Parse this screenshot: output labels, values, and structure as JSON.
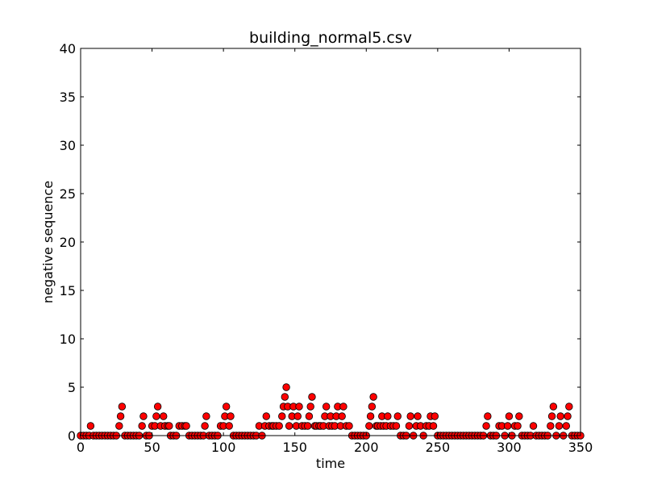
{
  "chart_data": {
    "type": "scatter",
    "title": "building_normal5.csv",
    "xlabel": "time",
    "ylabel": "negative sequence",
    "xlim": [
      0,
      350
    ],
    "ylim": [
      0,
      40
    ],
    "xticks": [
      "0",
      "50",
      "100",
      "150",
      "200",
      "250",
      "300",
      "350"
    ],
    "yticks": [
      "0",
      "5",
      "10",
      "15",
      "20",
      "25",
      "30",
      "35",
      "40"
    ],
    "marker_color": "#ff0000",
    "marker_edge": "#000000",
    "grid": false,
    "legend": "none",
    "points": [
      [
        0,
        0
      ],
      [
        2,
        0
      ],
      [
        4,
        0
      ],
      [
        6,
        0
      ],
      [
        7,
        1
      ],
      [
        9,
        0
      ],
      [
        11,
        0
      ],
      [
        13,
        0
      ],
      [
        15,
        0
      ],
      [
        17,
        0
      ],
      [
        19,
        0
      ],
      [
        21,
        0
      ],
      [
        23,
        0
      ],
      [
        25,
        0
      ],
      [
        27,
        1
      ],
      [
        28,
        2
      ],
      [
        29,
        3
      ],
      [
        31,
        0
      ],
      [
        33,
        0
      ],
      [
        35,
        0
      ],
      [
        37,
        0
      ],
      [
        39,
        0
      ],
      [
        41,
        0
      ],
      [
        43,
        1
      ],
      [
        44,
        2
      ],
      [
        46,
        0
      ],
      [
        48,
        0
      ],
      [
        50,
        1
      ],
      [
        52,
        1
      ],
      [
        53,
        2
      ],
      [
        54,
        3
      ],
      [
        56,
        1
      ],
      [
        58,
        2
      ],
      [
        59,
        1
      ],
      [
        61,
        1
      ],
      [
        62,
        1
      ],
      [
        63,
        0
      ],
      [
        65,
        0
      ],
      [
        67,
        0
      ],
      [
        69,
        1
      ],
      [
        71,
        1
      ],
      [
        73,
        1
      ],
      [
        74,
        1
      ],
      [
        76,
        0
      ],
      [
        78,
        0
      ],
      [
        80,
        0
      ],
      [
        82,
        0
      ],
      [
        84,
        0
      ],
      [
        86,
        0
      ],
      [
        87,
        1
      ],
      [
        88,
        2
      ],
      [
        90,
        0
      ],
      [
        92,
        0
      ],
      [
        94,
        0
      ],
      [
        96,
        0
      ],
      [
        98,
        1
      ],
      [
        100,
        1
      ],
      [
        101,
        2
      ],
      [
        102,
        3
      ],
      [
        104,
        1
      ],
      [
        105,
        2
      ],
      [
        107,
        0
      ],
      [
        109,
        0
      ],
      [
        111,
        0
      ],
      [
        113,
        0
      ],
      [
        115,
        0
      ],
      [
        117,
        0
      ],
      [
        119,
        0
      ],
      [
        121,
        0
      ],
      [
        123,
        0
      ],
      [
        125,
        1
      ],
      [
        127,
        0
      ],
      [
        129,
        1
      ],
      [
        130,
        2
      ],
      [
        132,
        1
      ],
      [
        134,
        1
      ],
      [
        135,
        1
      ],
      [
        137,
        1
      ],
      [
        139,
        1
      ],
      [
        141,
        2
      ],
      [
        142,
        3
      ],
      [
        143,
        4
      ],
      [
        144,
        5
      ],
      [
        145,
        3
      ],
      [
        146,
        1
      ],
      [
        148,
        2
      ],
      [
        149,
        3
      ],
      [
        151,
        1
      ],
      [
        152,
        2
      ],
      [
        153,
        3
      ],
      [
        155,
        1
      ],
      [
        157,
        1
      ],
      [
        159,
        1
      ],
      [
        160,
        2
      ],
      [
        161,
        3
      ],
      [
        162,
        4
      ],
      [
        164,
        1
      ],
      [
        165,
        1
      ],
      [
        167,
        1
      ],
      [
        168,
        1
      ],
      [
        170,
        1
      ],
      [
        171,
        2
      ],
      [
        172,
        3
      ],
      [
        174,
        1
      ],
      [
        175,
        2
      ],
      [
        176,
        1
      ],
      [
        178,
        1
      ],
      [
        179,
        2
      ],
      [
        180,
        3
      ],
      [
        182,
        1
      ],
      [
        183,
        2
      ],
      [
        184,
        3
      ],
      [
        186,
        1
      ],
      [
        188,
        1
      ],
      [
        190,
        0
      ],
      [
        192,
        0
      ],
      [
        194,
        0
      ],
      [
        196,
        0
      ],
      [
        198,
        0
      ],
      [
        200,
        0
      ],
      [
        202,
        1
      ],
      [
        203,
        2
      ],
      [
        204,
        3
      ],
      [
        205,
        4
      ],
      [
        207,
        1
      ],
      [
        208,
        1
      ],
      [
        210,
        1
      ],
      [
        211,
        2
      ],
      [
        212,
        1
      ],
      [
        214,
        1
      ],
      [
        215,
        2
      ],
      [
        217,
        1
      ],
      [
        219,
        1
      ],
      [
        221,
        1
      ],
      [
        222,
        2
      ],
      [
        224,
        0
      ],
      [
        226,
        0
      ],
      [
        228,
        0
      ],
      [
        230,
        1
      ],
      [
        231,
        2
      ],
      [
        233,
        0
      ],
      [
        235,
        1
      ],
      [
        236,
        2
      ],
      [
        238,
        1
      ],
      [
        240,
        0
      ],
      [
        242,
        1
      ],
      [
        244,
        1
      ],
      [
        245,
        2
      ],
      [
        247,
        1
      ],
      [
        248,
        2
      ],
      [
        250,
        0
      ],
      [
        252,
        0
      ],
      [
        254,
        0
      ],
      [
        256,
        0
      ],
      [
        258,
        0
      ],
      [
        260,
        0
      ],
      [
        262,
        0
      ],
      [
        264,
        0
      ],
      [
        266,
        0
      ],
      [
        268,
        0
      ],
      [
        270,
        0
      ],
      [
        272,
        0
      ],
      [
        274,
        0
      ],
      [
        276,
        0
      ],
      [
        278,
        0
      ],
      [
        280,
        0
      ],
      [
        282,
        0
      ],
      [
        284,
        1
      ],
      [
        285,
        2
      ],
      [
        287,
        0
      ],
      [
        289,
        0
      ],
      [
        291,
        0
      ],
      [
        293,
        1
      ],
      [
        295,
        1
      ],
      [
        297,
        0
      ],
      [
        299,
        1
      ],
      [
        300,
        2
      ],
      [
        302,
        0
      ],
      [
        304,
        1
      ],
      [
        306,
        1
      ],
      [
        307,
        2
      ],
      [
        309,
        0
      ],
      [
        311,
        0
      ],
      [
        313,
        0
      ],
      [
        315,
        0
      ],
      [
        317,
        1
      ],
      [
        319,
        0
      ],
      [
        321,
        0
      ],
      [
        323,
        0
      ],
      [
        325,
        0
      ],
      [
        327,
        0
      ],
      [
        329,
        1
      ],
      [
        330,
        2
      ],
      [
        331,
        3
      ],
      [
        333,
        0
      ],
      [
        335,
        1
      ],
      [
        336,
        2
      ],
      [
        338,
        0
      ],
      [
        340,
        1
      ],
      [
        341,
        2
      ],
      [
        342,
        3
      ],
      [
        344,
        0
      ],
      [
        346,
        0
      ],
      [
        348,
        0
      ],
      [
        350,
        0
      ]
    ]
  }
}
